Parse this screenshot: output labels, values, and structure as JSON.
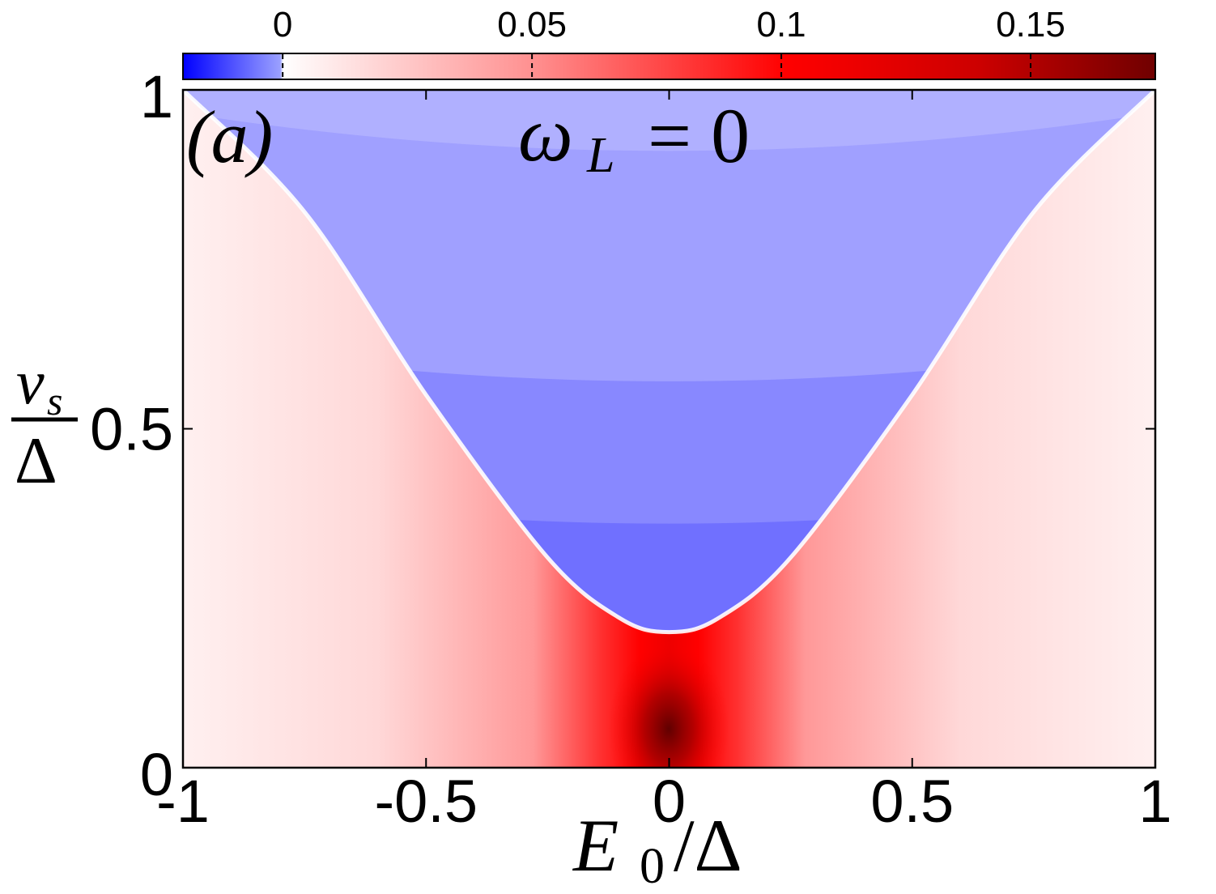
{
  "chart_data": {
    "type": "heatmap",
    "panel_label": "(a)",
    "annotation": "ω_L = 0",
    "annotation_main": "ω",
    "annotation_sub": "L",
    "annotation_rest": "= 0",
    "xlabel": "E0/Δ",
    "xlabel_main": "E",
    "xlabel_sub": "0",
    "xlabel_rest": "/Δ",
    "ylabel": "v_s/Δ",
    "ylabel_num_main": "v",
    "ylabel_num_sub": "s",
    "ylabel_den": "Δ",
    "xlim": [
      -1,
      1
    ],
    "ylim": [
      0,
      1
    ],
    "x_ticks": [
      -1,
      -0.5,
      0,
      0.5,
      1
    ],
    "x_tick_labels": [
      "-1",
      "-0.5",
      "0",
      "0.5",
      "1"
    ],
    "y_ticks": [
      0,
      0.5,
      1
    ],
    "y_tick_labels": [
      "0",
      "0.5",
      "1"
    ],
    "colorbar": {
      "position": "top",
      "range": [
        -0.02,
        0.175
      ],
      "ticks": [
        0,
        0.05,
        0.1,
        0.15
      ],
      "tick_labels": [
        "0",
        "0.05",
        "0.1",
        "0.15"
      ],
      "colormap": "blue-white-red",
      "color_min": "#0000ff",
      "color_zero": "#ffffff",
      "color_mid": "#ff0000",
      "color_max": "#800000"
    },
    "boundary_curve": {
      "x": [
        -1,
        -0.75,
        -0.5,
        -0.25,
        -0.1,
        0,
        0.1,
        0.25,
        0.5,
        0.75,
        1
      ],
      "y": [
        1,
        0.82,
        0.55,
        0.31,
        0.22,
        0.2,
        0.22,
        0.31,
        0.55,
        0.82,
        1
      ]
    },
    "positive_region_peak": {
      "x": 0,
      "y": 0.05,
      "value": 0.17
    },
    "negative_region_contour_levels": [
      -0.004,
      -0.008,
      -0.012,
      -0.016
    ]
  }
}
